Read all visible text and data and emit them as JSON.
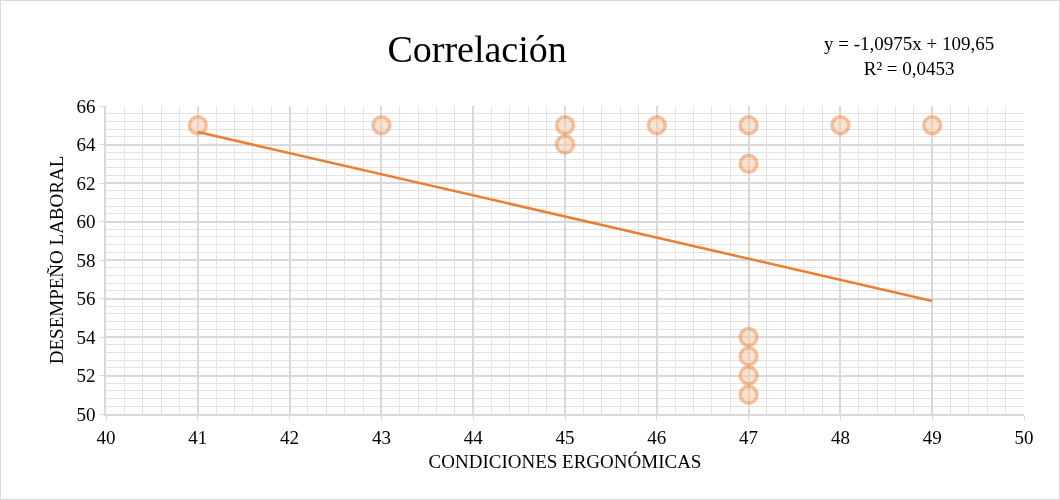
{
  "chart_data": {
    "type": "scatter",
    "title": "Correlación",
    "xlabel": "CONDICIONES ERGONÓMICAS",
    "ylabel": "DESEMPEÑO LABORAL",
    "annotations": [
      "y = -1,0975x + 109,65\nR² = 0,0453"
    ],
    "xlim": [
      40,
      50
    ],
    "xticks": [
      40,
      41,
      42,
      43,
      44,
      45,
      46,
      47,
      48,
      49,
      50
    ],
    "ylim": [
      50,
      66
    ],
    "yticks": [
      50,
      52,
      54,
      56,
      58,
      60,
      62,
      64,
      66
    ],
    "grid": true,
    "marker": "circle",
    "series": [
      {
        "color": "#ed7d31",
        "x": [
          41,
          43,
          45,
          45,
          46,
          47,
          47,
          48,
          49,
          47,
          47,
          47,
          47
        ],
        "values": [
          65,
          65,
          65,
          64,
          65,
          65,
          63,
          65,
          65,
          54,
          53,
          52,
          51
        ]
      },
      {
        "type": "line",
        "color": "#ed7d31",
        "x": [
          41,
          49
        ],
        "values": [
          64.65,
          55.87
        ],
        "line_style": "solid",
        "marker": "none"
      }
    ]
  }
}
